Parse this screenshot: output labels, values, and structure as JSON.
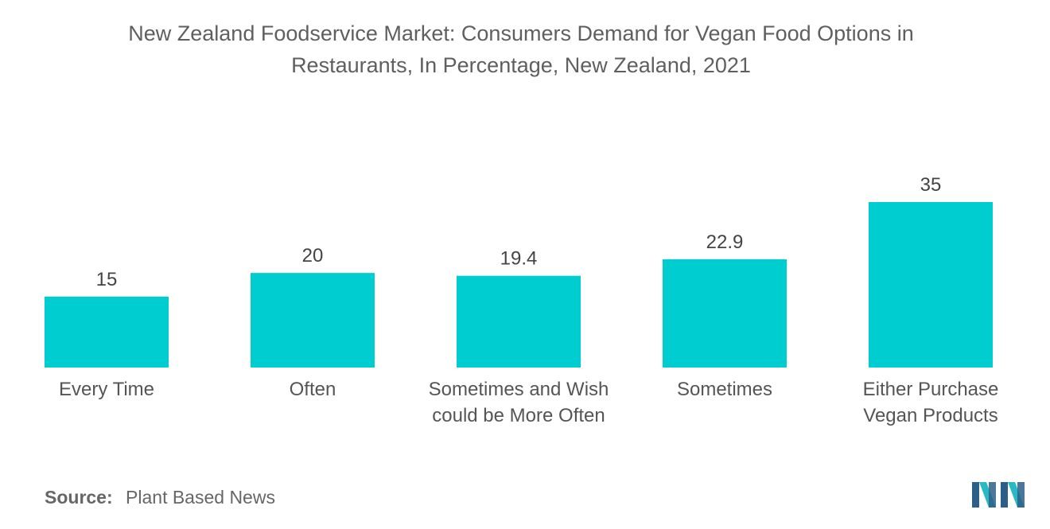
{
  "chart_data": {
    "type": "bar",
    "title": "New Zealand Foodservice Market: Consumers Demand for Vegan Food Options in Restaurants, In Percentage, New Zealand, 2021",
    "title_lines": [
      "New Zealand Foodservice Market: Consumers Demand for Vegan Food Options in",
      "Restaurants, In Percentage, New Zealand, 2021"
    ],
    "categories": [
      [
        "Every Time"
      ],
      [
        "Often"
      ],
      [
        "Sometimes and Wish",
        "could be More Often"
      ],
      [
        "Sometimes"
      ],
      [
        "Either Purchase",
        "Vegan Products"
      ]
    ],
    "values": [
      15,
      20,
      19.4,
      22.9,
      35
    ],
    "value_labels": [
      "15",
      "20",
      "19.4",
      "22.9",
      "35"
    ],
    "xlabel": "",
    "ylabel": "",
    "ylim": [
      0,
      35
    ],
    "grid": false,
    "legend": "none",
    "bar_color": "#00cdd0"
  },
  "source": {
    "label": "Source:",
    "text": "Plant Based News"
  },
  "logo": {
    "icon": "mordor-intelligence-logo-icon",
    "colors": [
      "#2b5f8a",
      "#29b9c4"
    ]
  }
}
